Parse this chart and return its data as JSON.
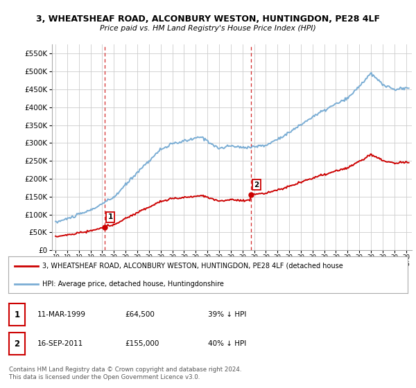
{
  "title": "3, WHEATSHEAF ROAD, ALCONBURY WESTON, HUNTINGDON, PE28 4LF",
  "subtitle": "Price paid vs. HM Land Registry's House Price Index (HPI)",
  "sale1_price": 64500,
  "sale1_year": 1999.19,
  "sale2_price": 155000,
  "sale2_year": 2011.71,
  "legend_line1": "3, WHEATSHEAF ROAD, ALCONBURY WESTON, HUNTINGDON, PE28 4LF (detached house",
  "legend_line2": "HPI: Average price, detached house, Huntingdonshire",
  "table_row1": [
    "1",
    "11-MAR-1999",
    "£64,500",
    "39% ↓ HPI"
  ],
  "table_row2": [
    "2",
    "16-SEP-2011",
    "£155,000",
    "40% ↓ HPI"
  ],
  "footer": "Contains HM Land Registry data © Crown copyright and database right 2024.\nThis data is licensed under the Open Government Licence v3.0.",
  "hpi_color": "#7aadd4",
  "price_color": "#cc0000",
  "vline_color": "#cc0000",
  "grid_color": "#cccccc",
  "ylim": [
    0,
    575000
  ],
  "xlim_start": 1994.7,
  "xlim_end": 2025.5
}
